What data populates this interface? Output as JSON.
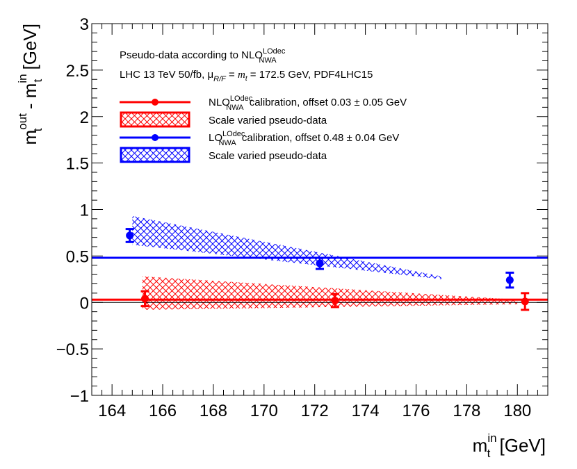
{
  "chart_data": {
    "type": "scatter",
    "title": "",
    "xlabel": {
      "base": "m",
      "sub": "t",
      "sup": "in",
      "unit": " [GeV]"
    },
    "ylabel": {
      "a_base": "m",
      "a_sub": "t",
      "a_sup": "out",
      "sep": " - ",
      "b_base": "m",
      "b_sub": "t",
      "b_sup": "in",
      "unit": " [GeV]"
    },
    "xlim": [
      163.2,
      181.2
    ],
    "ylim": [
      -1,
      3
    ],
    "xticks": [
      164,
      166,
      168,
      170,
      172,
      174,
      176,
      178,
      180
    ],
    "yticks": [
      -1,
      -0.5,
      0,
      0.5,
      1,
      1.5,
      2,
      2.5,
      3
    ],
    "ytick_labels": [
      "−1",
      "−0.5",
      "0",
      "0.5",
      "1",
      "1.5",
      "2",
      "2.5",
      "3"
    ],
    "annotation": {
      "line1_prefix": "Pseudo-data according to NLO",
      "line1_sup": "LOdec",
      "line1_sub": "NWA",
      "line2_prefix": "LHC 13 TeV 50/fb, μ",
      "line2_sub": "R/F",
      "line2_eq": " = ",
      "line2_mt": "m",
      "line2_mt_sub": "t",
      "line2_suffix": " = 172.5 GeV, PDF4LHC15"
    },
    "legend": [
      {
        "base": "NLO",
        "sup": "LOdec",
        "sub": "NWA",
        "text": " calibration, offset 0.03 ± 0.05 GeV"
      },
      {
        "text": "Scale varied pseudo-data"
      },
      {
        "base": "LO",
        "sup": "LOdec",
        "sub": "NWA",
        "text": " calibration, offset 0.48 ± 0.04 GeV"
      },
      {
        "text": "Scale varied pseudo-data"
      }
    ],
    "series": [
      {
        "name": "NLO calibration",
        "color": "#ff0000",
        "offset": 0.03,
        "points": [
          {
            "x": 165.3,
            "y": 0.04,
            "err": 0.08
          },
          {
            "x": 172.8,
            "y": 0.02,
            "err": 0.07
          },
          {
            "x": 180.3,
            "y": 0.01,
            "err": 0.09
          }
        ],
        "band": {
          "x": [
            165.2,
            180.0
          ],
          "upper": [
            0.28,
            0.03
          ],
          "lower": [
            -0.08,
            -0.02
          ]
        }
      },
      {
        "name": "LO calibration",
        "color": "#0000ff",
        "offset": 0.48,
        "points": [
          {
            "x": 164.7,
            "y": 0.72,
            "err": 0.07
          },
          {
            "x": 172.2,
            "y": 0.42,
            "err": 0.06
          },
          {
            "x": 179.7,
            "y": 0.24,
            "err": 0.08
          }
        ],
        "band": {
          "x": [
            164.8,
            177.0
          ],
          "upper": [
            0.93,
            0.28
          ],
          "lower": [
            0.62,
            0.25
          ]
        }
      }
    ]
  }
}
